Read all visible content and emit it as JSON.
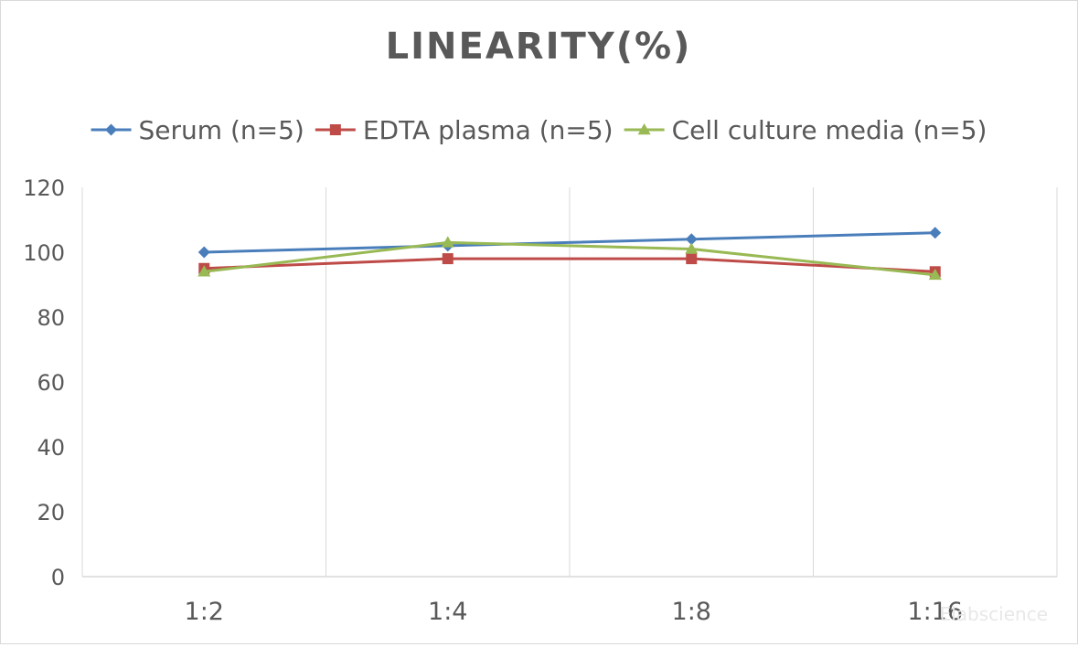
{
  "chart_data": {
    "type": "line",
    "title": "LINEARITY(%)",
    "xlabel": "",
    "ylabel": "",
    "categories": [
      "1:2",
      "1:4",
      "1:8",
      "1:16"
    ],
    "ylim": [
      0,
      120
    ],
    "yticks": [
      0,
      20,
      40,
      60,
      80,
      100,
      120
    ],
    "grid": "vertical",
    "legend_position": "top",
    "series": [
      {
        "name": "Serum (n=5)",
        "values": [
          100,
          102,
          104,
          106
        ],
        "color": "#4a7ebb",
        "marker": "diamond"
      },
      {
        "name": "EDTA plasma (n=5)",
        "values": [
          95,
          98,
          98,
          94
        ],
        "color": "#be4b48",
        "marker": "square"
      },
      {
        "name": "Cell culture media (n=5)",
        "values": [
          94,
          103,
          101,
          93
        ],
        "color": "#98b954",
        "marker": "triangle"
      }
    ]
  },
  "watermark": "Elabscience"
}
